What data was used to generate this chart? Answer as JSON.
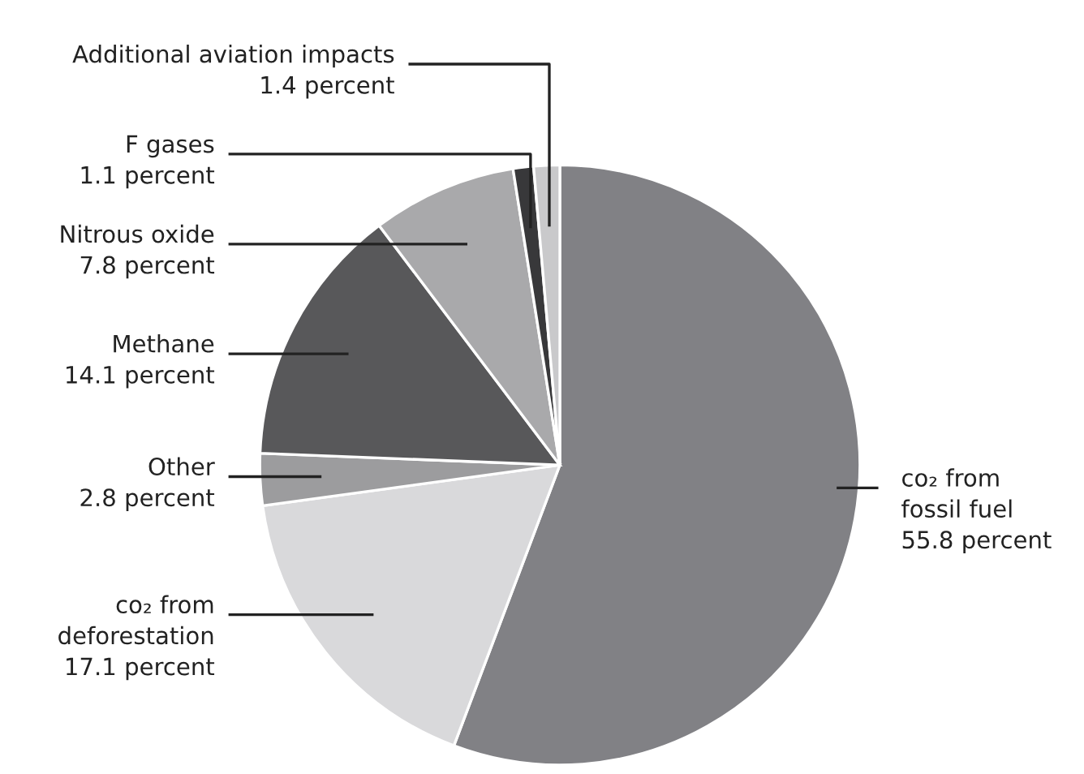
{
  "chart_data": {
    "type": "pie",
    "categories": [
      "co₂ from\nfossil fuel",
      "co₂ from\ndeforestation",
      "Other",
      "Methane",
      "Nitrous oxide",
      "F gases",
      "Additional aviation impacts"
    ],
    "values": [
      55.8,
      17.1,
      2.8,
      14.1,
      7.8,
      1.1,
      1.4
    ],
    "colors": [
      "#818185",
      "#d9d9db",
      "#9c9c9e",
      "#58585a",
      "#a9a9ab",
      "#38383a",
      "#c9c9cb"
    ],
    "value_labels": [
      "55.8 percent",
      "17.1 percent",
      "2.8 percent",
      "14.1 percent",
      "7.8 percent",
      "1.1 percent",
      "1.4 percent"
    ]
  }
}
